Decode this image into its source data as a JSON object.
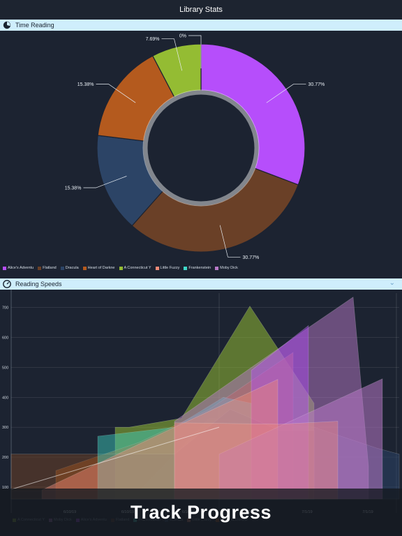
{
  "app": {
    "title": "Library Stats",
    "footer_caption": "Track Progress"
  },
  "sections": {
    "time_reading": {
      "label": "Time Reading"
    },
    "reading_speeds": {
      "label": "Reading Speeds"
    }
  },
  "chart_data": [
    {
      "type": "pie",
      "title": "Time Reading",
      "slices": [
        {
          "label": "Alice's Adventu",
          "value": 30.77,
          "text": "30.77%",
          "color": "#b64efb"
        },
        {
          "label": "Flatland",
          "value": 30.77,
          "text": "30.77%",
          "color": "#6a4027"
        },
        {
          "label": "Dracula",
          "value": 15.38,
          "text": "15.38%",
          "color": "#2c4466"
        },
        {
          "label": "Heart of Darkne",
          "value": 15.38,
          "text": "15.38%",
          "color": "#b45a1e"
        },
        {
          "label": "A Connecticut Y",
          "value": 7.69,
          "text": "7.69%",
          "color": "#94bc33"
        },
        {
          "label": "Little Fuzzy",
          "value": 0,
          "text": "0%",
          "color": "#f08a78"
        },
        {
          "label": "Frankenstein",
          "value": 0,
          "text": "",
          "color": "#3fd8c8"
        },
        {
          "label": "Moby Dick",
          "value": 0,
          "text": "",
          "color": "#b879c7"
        }
      ]
    },
    {
      "type": "area",
      "title": "Reading Speeds",
      "ylim": [
        60,
        760
      ],
      "yticks": [
        100,
        200,
        300,
        400,
        500,
        600,
        700
      ],
      "xticks": [
        "6/10/19",
        "6/10/19",
        "6/16/19",
        "6/23/19",
        "7/1/19",
        "7/1/19"
      ],
      "legend": [
        {
          "label": "A Connecticut Y",
          "color": "#94bc33"
        },
        {
          "label": "Moby Dick",
          "color": "#b879c7"
        },
        {
          "label": "Alice's Adventu",
          "color": "#b64efb"
        },
        {
          "label": "Flatland",
          "color": "#6a4027"
        },
        {
          "label": "Frankenstein",
          "color": "#3fd8c8"
        },
        {
          "label": "Dracula",
          "color": "#2c4466"
        },
        {
          "label": "Little Fuzzy",
          "color": "#f08a78"
        },
        {
          "label": "Heart of Darkne",
          "color": "#b45a1e"
        }
      ]
    }
  ]
}
